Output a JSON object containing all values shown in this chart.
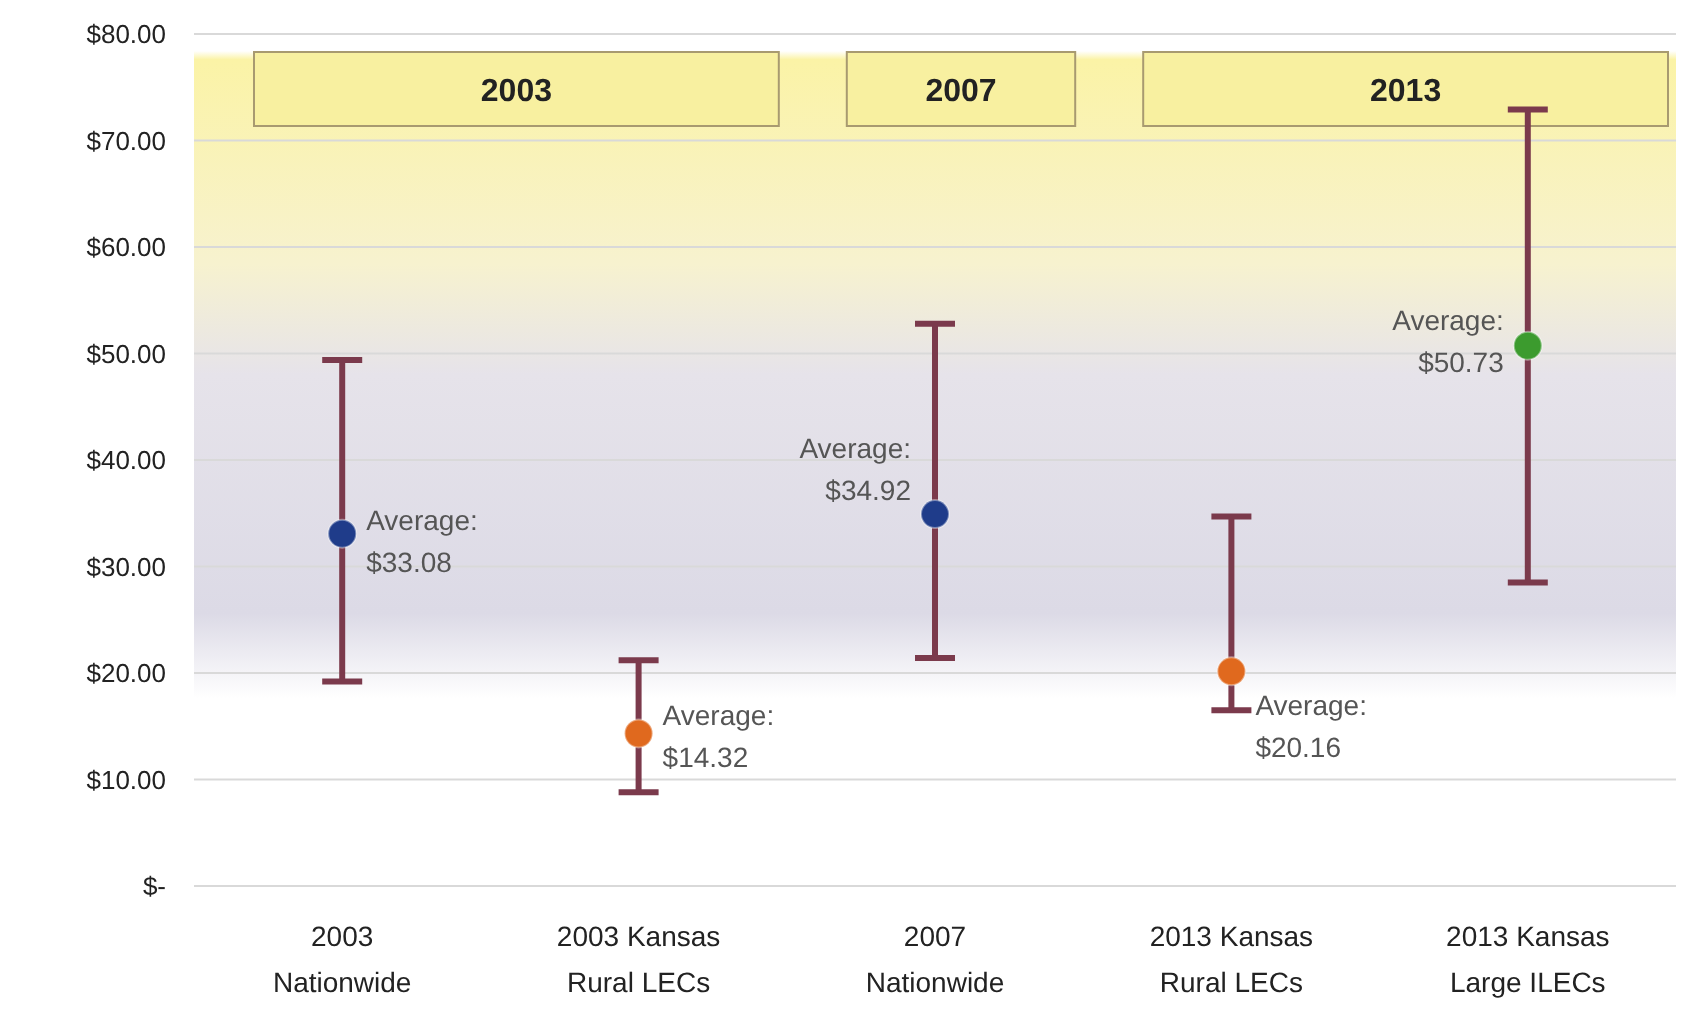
{
  "chart_data": {
    "type": "scatter",
    "categories": [
      "2003\nNationwide",
      "2003 Kansas\nRural LECs",
      "2007\nNationwide",
      "2013 Kansas\nRural LECs",
      "2013 Kansas\nLarge ILECs"
    ],
    "values": [
      33.08,
      14.32,
      34.92,
      20.16,
      50.73
    ],
    "colors": [
      "#1f3c8a",
      "#e0691e",
      "#1f3c8a",
      "#e0691e",
      "#3c9b2e"
    ],
    "errors": [
      [
        19.2,
        49.4
      ],
      [
        8.8,
        21.2
      ],
      [
        21.4,
        52.8
      ],
      [
        16.5,
        34.7
      ],
      [
        28.5,
        72.9
      ]
    ],
    "value_labels": [
      "Average: $33.08",
      "Average: $14.32",
      "Average: $34.92",
      "Average: $20.16",
      "Average: $50.73"
    ],
    "annotations": [
      "2003",
      "2007",
      "2013"
    ],
    "ylim": [
      0,
      80
    ],
    "yticks": [
      {
        "value": 0,
        "label": "$-"
      },
      {
        "value": 10,
        "label": "$10.00"
      },
      {
        "value": 20,
        "label": "$20.00"
      },
      {
        "value": 30,
        "label": "$30.00"
      },
      {
        "value": 40,
        "label": "$40.00"
      },
      {
        "value": 50,
        "label": "$50.00"
      },
      {
        "value": 60,
        "label": "$60.00"
      },
      {
        "value": 70,
        "label": "$70.00"
      },
      {
        "value": 80,
        "label": "$80.00"
      }
    ],
    "grid": "y",
    "marker": "circle"
  }
}
